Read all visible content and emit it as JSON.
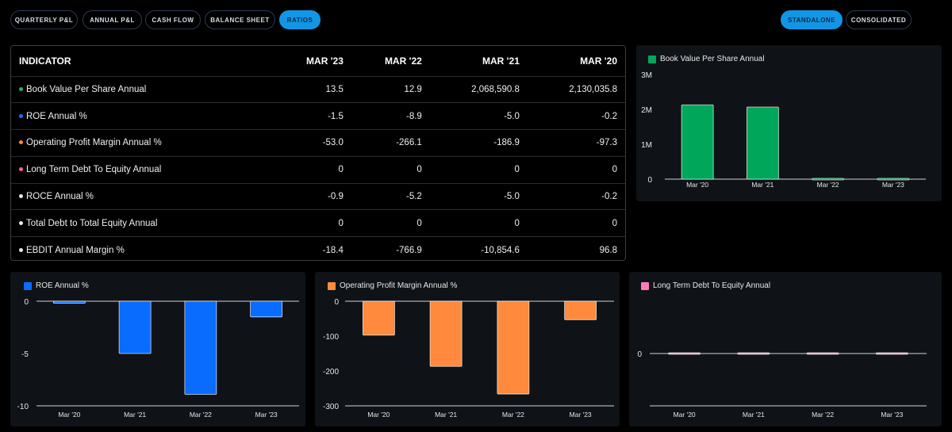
{
  "tabs": [
    {
      "label": "QUARTERLY P&L",
      "active": false
    },
    {
      "label": "ANNUAL P&L",
      "active": false
    },
    {
      "label": "CASH FLOW",
      "active": false
    },
    {
      "label": "BALANCE SHEET",
      "active": false
    },
    {
      "label": "RATIOS",
      "active": true
    }
  ],
  "view_toggle": [
    {
      "label": "STANDALONE",
      "active": true
    },
    {
      "label": "CONSOLIDATED",
      "active": false
    }
  ],
  "table": {
    "header": [
      "INDICATOR",
      "MAR '23",
      "MAR '22",
      "MAR '21",
      "MAR '20"
    ],
    "rows": [
      {
        "label": "Book Value Per Share Annual",
        "dot": "#22b35e",
        "values": [
          "13.5",
          "12.9",
          "2,068,590.8",
          "2,130,035.8"
        ]
      },
      {
        "label": "ROE Annual %",
        "dot": "#1f6bff",
        "values": [
          "-1.5",
          "-8.9",
          "-5.0",
          "-0.2"
        ]
      },
      {
        "label": "Operating Profit Margin Annual %",
        "dot": "#ff8a3d",
        "values": [
          "-53.0",
          "-266.1",
          "-186.9",
          "-97.3"
        ]
      },
      {
        "label": "Long Term Debt To Equity Annual",
        "dot": "#ff5fa8",
        "values": [
          "0",
          "0",
          "0",
          "0"
        ]
      },
      {
        "label": "ROCE Annual %",
        "dot": "#e8e8e8",
        "values": [
          "-0.9",
          "-5.2",
          "-5.0",
          "-0.2"
        ]
      },
      {
        "label": "Total Debt to Total Equity Annual",
        "dot": "#e8e8e8",
        "values": [
          "0",
          "0",
          "0",
          "0"
        ]
      },
      {
        "label": "EBDIT Annual Margin %",
        "dot": "#e8e8e8",
        "values": [
          "-18.4",
          "-766.9",
          "-10,854.6",
          "96.8"
        ]
      }
    ]
  },
  "chart_data": [
    {
      "type": "bar",
      "title": "Book Value Per Share Annual",
      "color": "#00a65a",
      "categories": [
        "Mar '20",
        "Mar '21",
        "Mar '22",
        "Mar '23"
      ],
      "values": [
        2130035.8,
        2068590.8,
        12.9,
        13.5
      ],
      "ylim": [
        0,
        3000000
      ],
      "ticks": [
        {
          "v": 0,
          "label": "0"
        },
        {
          "v": 1000000,
          "label": "1M"
        },
        {
          "v": 2000000,
          "label": "2M"
        },
        {
          "v": 3000000,
          "label": "3M"
        }
      ]
    },
    {
      "type": "bar",
      "title": "ROE Annual %",
      "color": "#0a6cff",
      "categories": [
        "Mar '20",
        "Mar '21",
        "Mar '22",
        "Mar '23"
      ],
      "values": [
        -0.2,
        -5.0,
        -8.9,
        -1.5
      ],
      "ylim": [
        -10,
        0
      ],
      "ticks": [
        {
          "v": 0,
          "label": "0"
        },
        {
          "v": -5,
          "label": "-5"
        },
        {
          "v": -10,
          "label": "-10"
        }
      ]
    },
    {
      "type": "bar",
      "title": "Operating Profit Margin Annual %",
      "color": "#ff8a3d",
      "categories": [
        "Mar '20",
        "Mar '21",
        "Mar '22",
        "Mar '23"
      ],
      "values": [
        -97.3,
        -186.9,
        -266.1,
        -53.0
      ],
      "ylim": [
        -300,
        0
      ],
      "ticks": [
        {
          "v": 0,
          "label": "0"
        },
        {
          "v": -100,
          "label": "-100"
        },
        {
          "v": -200,
          "label": "-200"
        },
        {
          "v": -300,
          "label": "-300"
        }
      ]
    },
    {
      "type": "bar",
      "title": "Long Term Debt To Equity Annual",
      "color": "#f4a6c8",
      "categories": [
        "Mar '20",
        "Mar '21",
        "Mar '22",
        "Mar '23"
      ],
      "values": [
        0,
        0,
        0,
        0
      ],
      "ylim": [
        -1,
        1
      ],
      "ticks": [
        {
          "v": 0,
          "label": "0"
        }
      ]
    }
  ]
}
